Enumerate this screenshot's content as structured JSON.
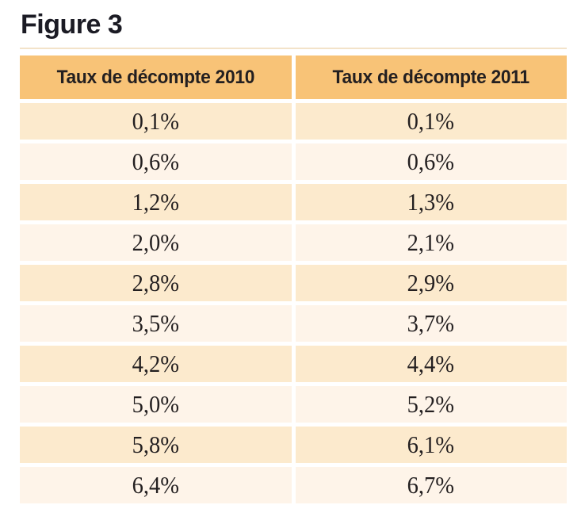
{
  "figure": {
    "title": "Figure 3"
  },
  "table": {
    "headers": [
      "Taux de décompte 2010",
      "Taux de décompte 2011"
    ],
    "rows": [
      [
        "0,1%",
        "0,1%"
      ],
      [
        "0,6%",
        "0,6%"
      ],
      [
        "1,2%",
        "1,3%"
      ],
      [
        "2,0%",
        "2,1%"
      ],
      [
        "2,8%",
        "2,9%"
      ],
      [
        "3,5%",
        "3,7%"
      ],
      [
        "4,2%",
        "4,4%"
      ],
      [
        "5,0%",
        "5,2%"
      ],
      [
        "5,8%",
        "6,1%"
      ],
      [
        "6,4%",
        "6,7%"
      ]
    ]
  },
  "colors": {
    "header_bg": "#F8C377",
    "row_odd_bg": "#FCEACD",
    "row_even_bg": "#FEF4E9",
    "text": "#231F20",
    "title_text": "#1B1B24",
    "top_rule": "#F3E3C9",
    "background": "#FFFFFF"
  },
  "chart_data": {
    "type": "table",
    "title": "Figure 3",
    "columns": [
      "Taux de décompte 2010",
      "Taux de décompte 2011"
    ],
    "rows": [
      [
        "0,1%",
        "0,1%"
      ],
      [
        "0,6%",
        "0,6%"
      ],
      [
        "1,2%",
        "1,3%"
      ],
      [
        "2,0%",
        "2,1%"
      ],
      [
        "2,8%",
        "2,9%"
      ],
      [
        "3,5%",
        "3,7%"
      ],
      [
        "4,2%",
        "4,4%"
      ],
      [
        "5,0%",
        "5,2%"
      ],
      [
        "5,8%",
        "6,1%"
      ],
      [
        "6,4%",
        "6,7%"
      ]
    ],
    "layout": {
      "header_style": "orange band",
      "row_striping": "alternating peach shades, odd rows darker",
      "cell_alignment": "center",
      "decimal_separator": "comma (French)"
    }
  }
}
